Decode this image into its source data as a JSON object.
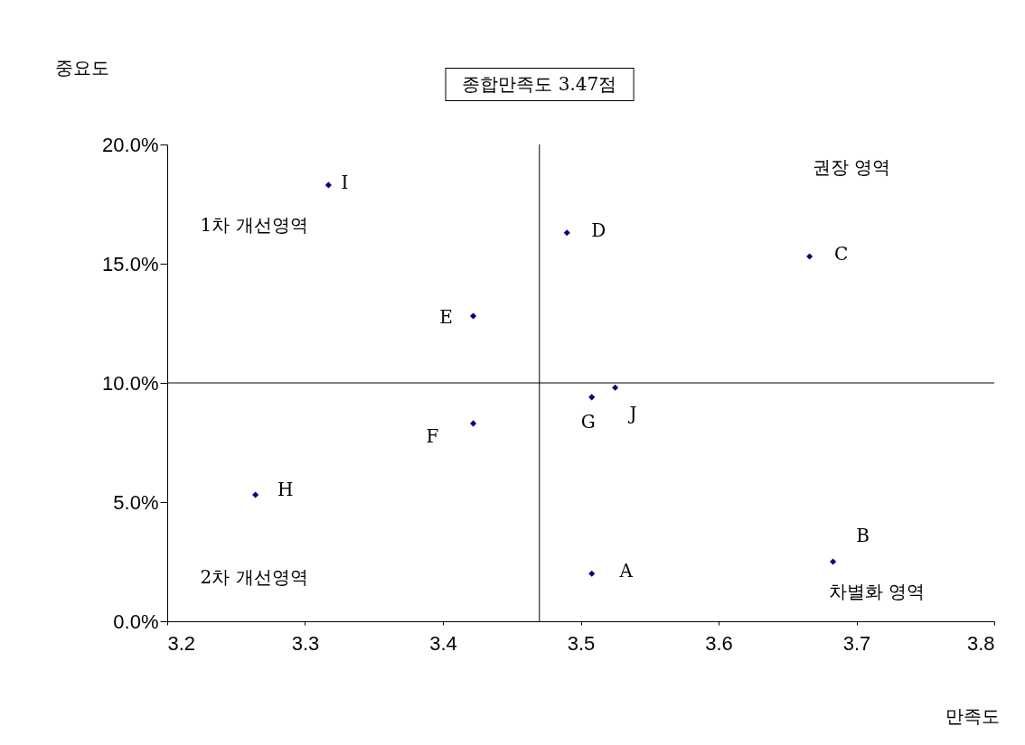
{
  "chart_data": {
    "type": "scatter",
    "xlabel": "만족도",
    "ylabel": "중요도",
    "x": [
      3.508,
      3.683,
      3.666,
      3.49,
      3.422,
      3.422,
      3.508,
      3.264,
      3.317,
      3.525
    ],
    "values": [
      2.0,
      2.5,
      15.3,
      16.3,
      12.8,
      8.3,
      9.4,
      5.3,
      18.3,
      9.8
    ],
    "color": "#000080",
    "marker": "diamond",
    "grid": false,
    "xlim": [
      3.2,
      3.8
    ],
    "xticks": [
      3.2,
      3.3,
      3.4,
      3.5,
      3.6,
      3.7,
      3.8
    ],
    "ylim": [
      0,
      20
    ],
    "yticks": [
      {
        "value": 0,
        "label": "0.0%"
      },
      {
        "value": 5,
        "label": "5.0%"
      },
      {
        "value": 10,
        "label": "10.0%"
      },
      {
        "value": 15,
        "label": "15.0%"
      },
      {
        "value": 20,
        "label": "20.0%"
      }
    ],
    "ref_lines": [
      {
        "axis": "x",
        "value": 3.47,
        "label": "종합만족도 3.47점",
        "color": "#000000"
      },
      {
        "axis": "y",
        "value": 10,
        "color": "#000000"
      }
    ],
    "annotations": [
      {
        "text": "A",
        "x": 3.508,
        "y": 2.0
      },
      {
        "text": "B",
        "x": 3.683,
        "y": 2.5
      },
      {
        "text": "C",
        "x": 3.666,
        "y": 15.3
      },
      {
        "text": "D",
        "x": 3.49,
        "y": 16.3
      },
      {
        "text": "E",
        "x": 3.422,
        "y": 12.8
      },
      {
        "text": "F",
        "x": 3.422,
        "y": 8.3
      },
      {
        "text": "G",
        "x": 3.508,
        "y": 9.4
      },
      {
        "text": "H",
        "x": 3.264,
        "y": 5.3
      },
      {
        "text": "I",
        "x": 3.317,
        "y": 18.3
      },
      {
        "text": "J",
        "x": 3.525,
        "y": 9.8
      },
      "1차 개선영역",
      "권장 영역",
      "2차 개선영역",
      "차별화 영역"
    ]
  }
}
